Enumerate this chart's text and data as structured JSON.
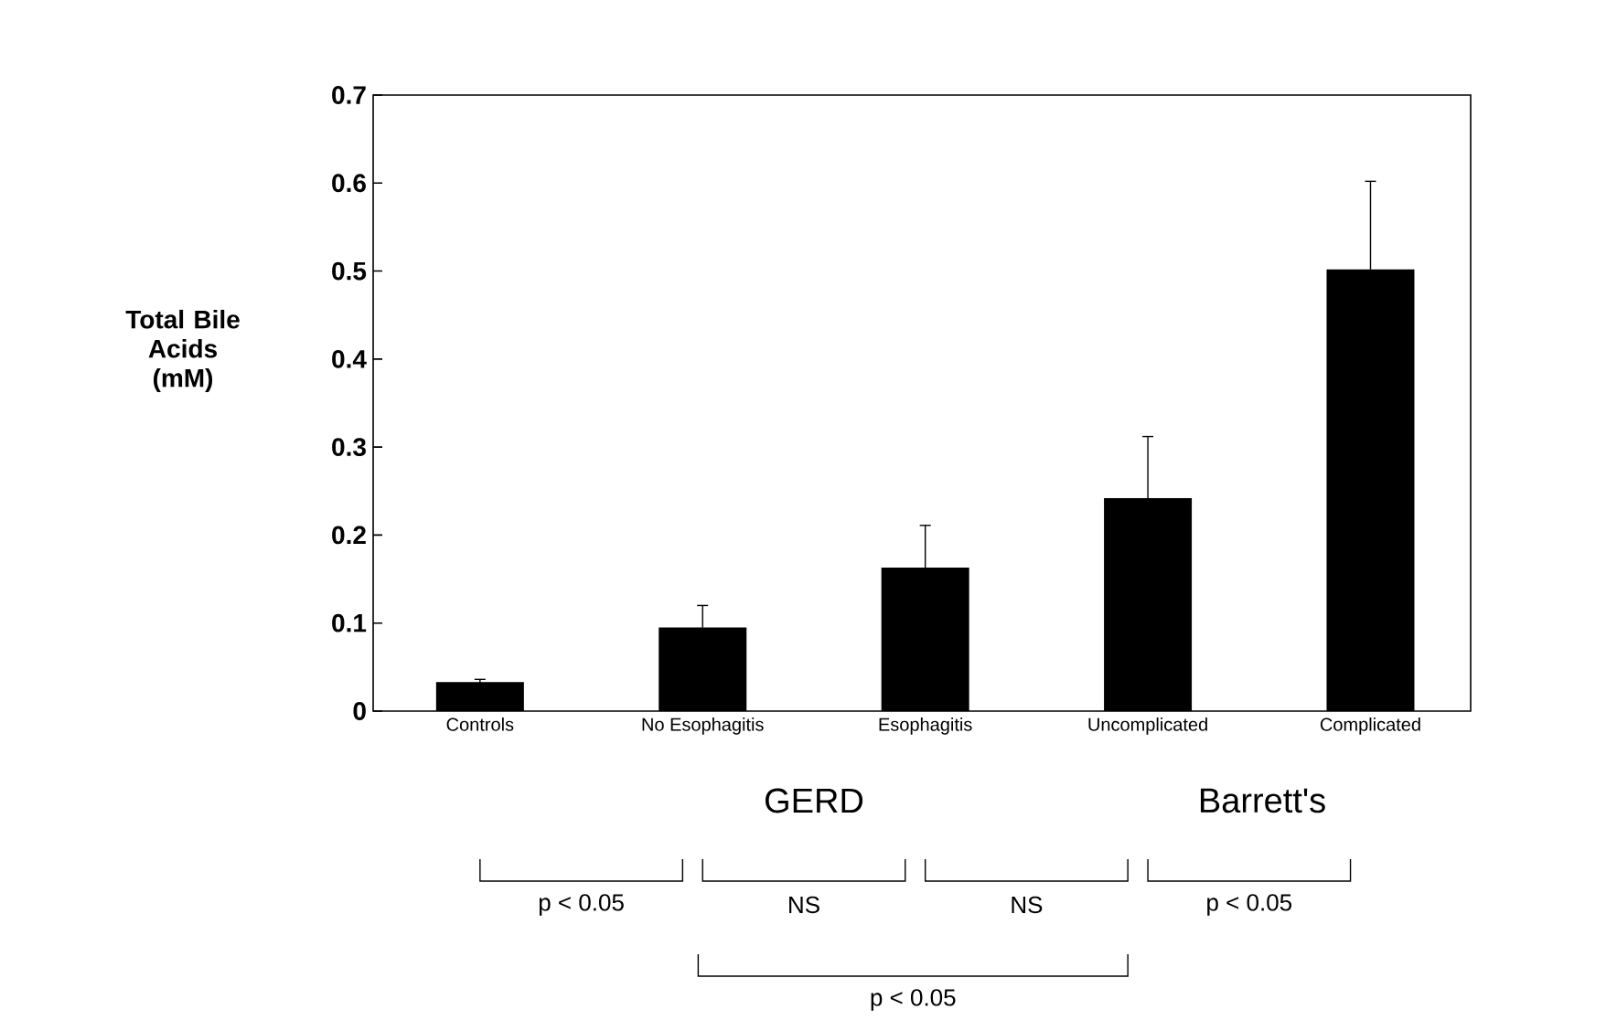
{
  "chart_data": {
    "type": "bar",
    "ylabel": "Total Bile Acids (mM)",
    "categories": [
      "Controls",
      "No Esophagitis",
      "Esophagitis",
      "Uncomplicated",
      "Complicated"
    ],
    "values": [
      0.033,
      0.095,
      0.163,
      0.242,
      0.502
    ],
    "errors": [
      0.003,
      0.025,
      0.048,
      0.07,
      0.1
    ],
    "color": "#000000",
    "ylim": [
      0,
      0.7
    ],
    "yticks": [
      0,
      0.1,
      0.2,
      0.3,
      0.4,
      0.5,
      0.6,
      0.7
    ],
    "annotations": [
      "GERD",
      "Barrett's",
      "p < 0.05",
      "NS",
      "NS",
      "p < 0.05",
      "p < 0.05"
    ]
  }
}
